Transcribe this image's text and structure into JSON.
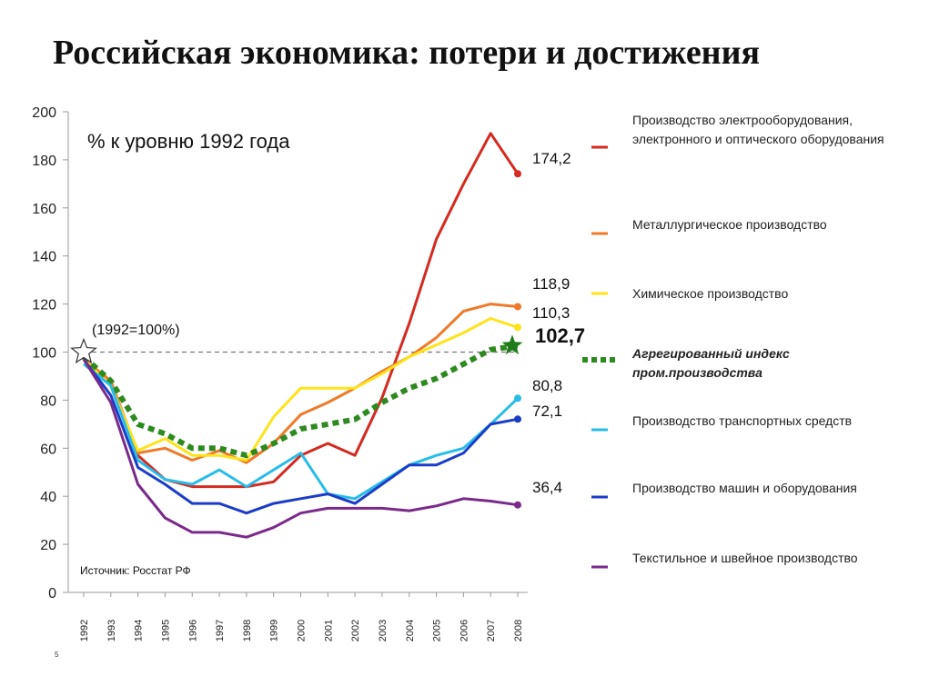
{
  "title": "Российская экономика: потери и достижения",
  "page_number": "5",
  "chart_data": {
    "type": "line",
    "subtitle": "% к уровню 1992 года",
    "base_note": "(1992=100%)",
    "source": "Источник: Росстат РФ",
    "ylim": [
      0,
      200
    ],
    "y_ticks": [
      0,
      20,
      40,
      60,
      80,
      100,
      120,
      140,
      160,
      180,
      200
    ],
    "reference_value": 100,
    "x": [
      "1992",
      "1993",
      "1994",
      "1995",
      "1996",
      "1997",
      "1998",
      "1999",
      "2000",
      "2001",
      "2002",
      "2003",
      "2004",
      "2005",
      "2006",
      "2007",
      "2008"
    ],
    "series": [
      {
        "name": "Производство электрооборудования, электронного и оптического оборудования",
        "color": "#d42a20",
        "style": "solid",
        "end_label": "174,2",
        "values": [
          97,
          86,
          57,
          47,
          44,
          44,
          44,
          46,
          57,
          62,
          57,
          81,
          112,
          147,
          170,
          191,
          174.2
        ]
      },
      {
        "name": "Металлургическое производство",
        "color": "#ee7a2a",
        "style": "solid",
        "end_label": "118,9",
        "values": [
          97,
          88,
          58,
          60,
          55,
          59,
          54,
          62,
          74,
          79,
          85,
          92,
          98,
          106,
          117,
          120,
          118.9
        ]
      },
      {
        "name": "Химическое производство",
        "color": "#ffe31a",
        "style": "solid",
        "end_label": "110,3",
        "values": [
          97,
          86,
          59,
          64,
          57,
          57,
          55,
          73,
          85,
          85,
          85,
          91,
          98,
          103,
          108,
          114,
          110.3
        ]
      },
      {
        "name": "Агрегированный индекс пром.производства",
        "color": "#2d8a1e",
        "style": "dotted",
        "end_label": "102,7",
        "values": [
          98,
          88,
          70,
          66,
          60,
          60,
          57,
          62,
          68,
          70,
          72,
          79,
          85,
          89,
          95,
          101,
          102.7
        ]
      },
      {
        "name": "Производство транспортных средств",
        "color": "#27bde8",
        "style": "solid",
        "end_label": "80,8",
        "values": [
          95,
          86,
          55,
          47,
          45,
          51,
          44,
          51,
          58,
          41,
          39,
          46,
          53,
          57,
          60,
          70,
          80.8
        ]
      },
      {
        "name": "Производство машин и оборудования",
        "color": "#1b3cc8",
        "style": "solid",
        "end_label": "72,1",
        "values": [
          97,
          82,
          52,
          45,
          37,
          37,
          33,
          37,
          39,
          41,
          37,
          45,
          53,
          53,
          58,
          70,
          72.1
        ]
      },
      {
        "name": "Текстильное и швейное производство",
        "color": "#7a2a8a",
        "style": "solid",
        "end_label": "36,4",
        "values": [
          97,
          79,
          45,
          31,
          25,
          25,
          23,
          27,
          33,
          35,
          35,
          35,
          34,
          36,
          39,
          38,
          36.4
        ]
      }
    ]
  }
}
